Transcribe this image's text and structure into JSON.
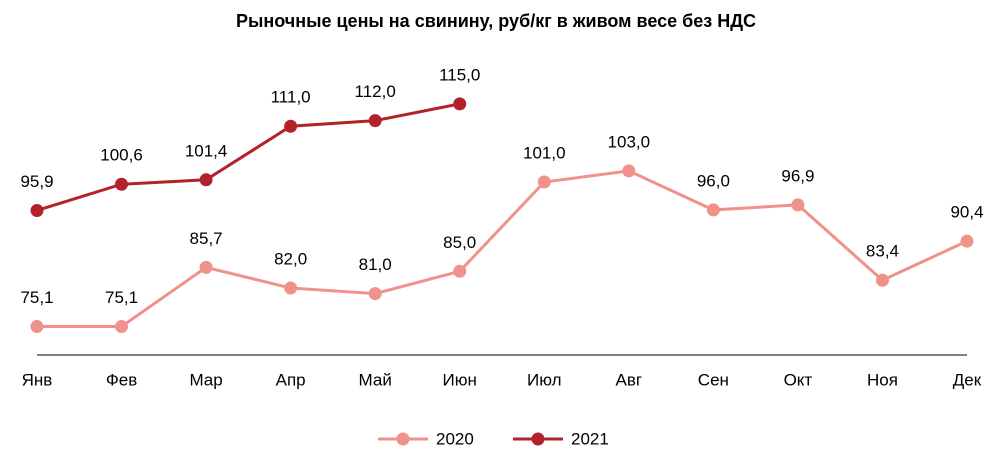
{
  "chart_data": {
    "type": "line",
    "title": "Рыночные цены на свинину, руб/кг в живом весе без НДС",
    "categories": [
      "Янв",
      "Фев",
      "Мар",
      "Апр",
      "Май",
      "Июн",
      "Июл",
      "Авг",
      "Сен",
      "Окт",
      "Ноя",
      "Дек"
    ],
    "series": [
      {
        "name": "2020",
        "color": "#f0928b",
        "values": [
          75.1,
          75.1,
          85.7,
          82.0,
          81.0,
          85.0,
          101.0,
          103.0,
          96.0,
          96.9,
          83.4,
          90.4
        ],
        "value_labels": [
          "75,1",
          "75,1",
          "85,7",
          "82,0",
          "81,0",
          "85,0",
          "101,0",
          "103,0",
          "96,0",
          "96,9",
          "83,4",
          "90,4"
        ]
      },
      {
        "name": "2021",
        "color": "#b3222a",
        "values": [
          95.9,
          100.6,
          101.4,
          111.0,
          112.0,
          115.0,
          null,
          null,
          null,
          null,
          null,
          null
        ],
        "value_labels": [
          "95,9",
          "100,6",
          "101,4",
          "111,0",
          "112,0",
          "115,0",
          null,
          null,
          null,
          null,
          null,
          null
        ]
      }
    ],
    "ylim": [
      70,
      120
    ],
    "legend": "bottom"
  }
}
